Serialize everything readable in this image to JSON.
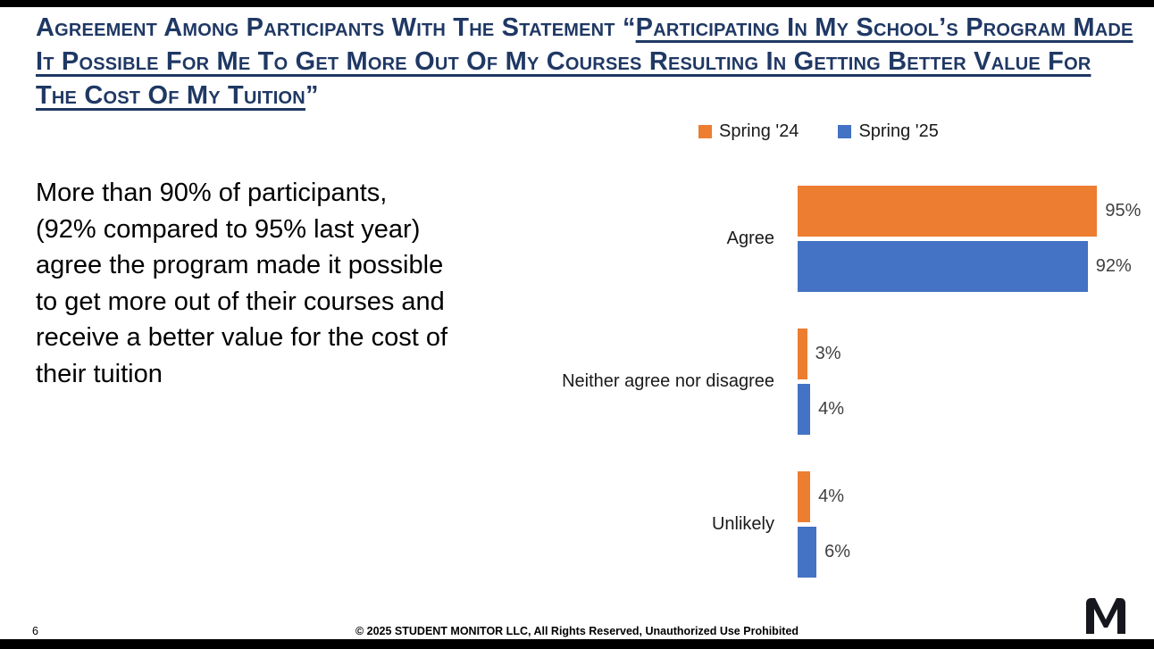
{
  "slide": {
    "title": {
      "plain_prefix": "Agreement Among Participants With The Statement “",
      "underlined": "Participating In My School’s Program Made It Possible For Me To Get More Out Of My Courses Resulting In Getting Better Value For The Cost Of My Tuition",
      "plain_suffix": "”"
    },
    "body_text": "More than 90% of participants, (92% compared to 95% last year) agree the program made it possible to get more out of their courses and receive a better value for the cost of their tuition",
    "footer": {
      "page_number": "6",
      "copyright": "© 2025 STUDENT MONITOR LLC, All Rights Reserved, Unauthorized Use Prohibited"
    },
    "logo_name": "student-monitor-m-logo"
  },
  "colors": {
    "title_navy": "#1F3864",
    "spring_24_orange": "#ED7D31",
    "spring_25_blue": "#4472C4",
    "value_label_gray": "#404040",
    "edge_bars_black": "#000000"
  },
  "chart_data": {
    "type": "bar",
    "orientation": "horizontal",
    "title": "",
    "xlabel": "",
    "ylabel": "",
    "xlim": [
      0,
      100
    ],
    "grid": false,
    "legend_position": "top",
    "categories": [
      "Agree",
      "Neither agree nor disagree",
      "Unlikely"
    ],
    "series": [
      {
        "name": "Spring '24",
        "color": "#ED7D31",
        "values": [
          95,
          3,
          4
        ]
      },
      {
        "name": "Spring '25",
        "color": "#4472C4",
        "values": [
          92,
          4,
          6
        ]
      }
    ],
    "data_label_format": "percent"
  }
}
